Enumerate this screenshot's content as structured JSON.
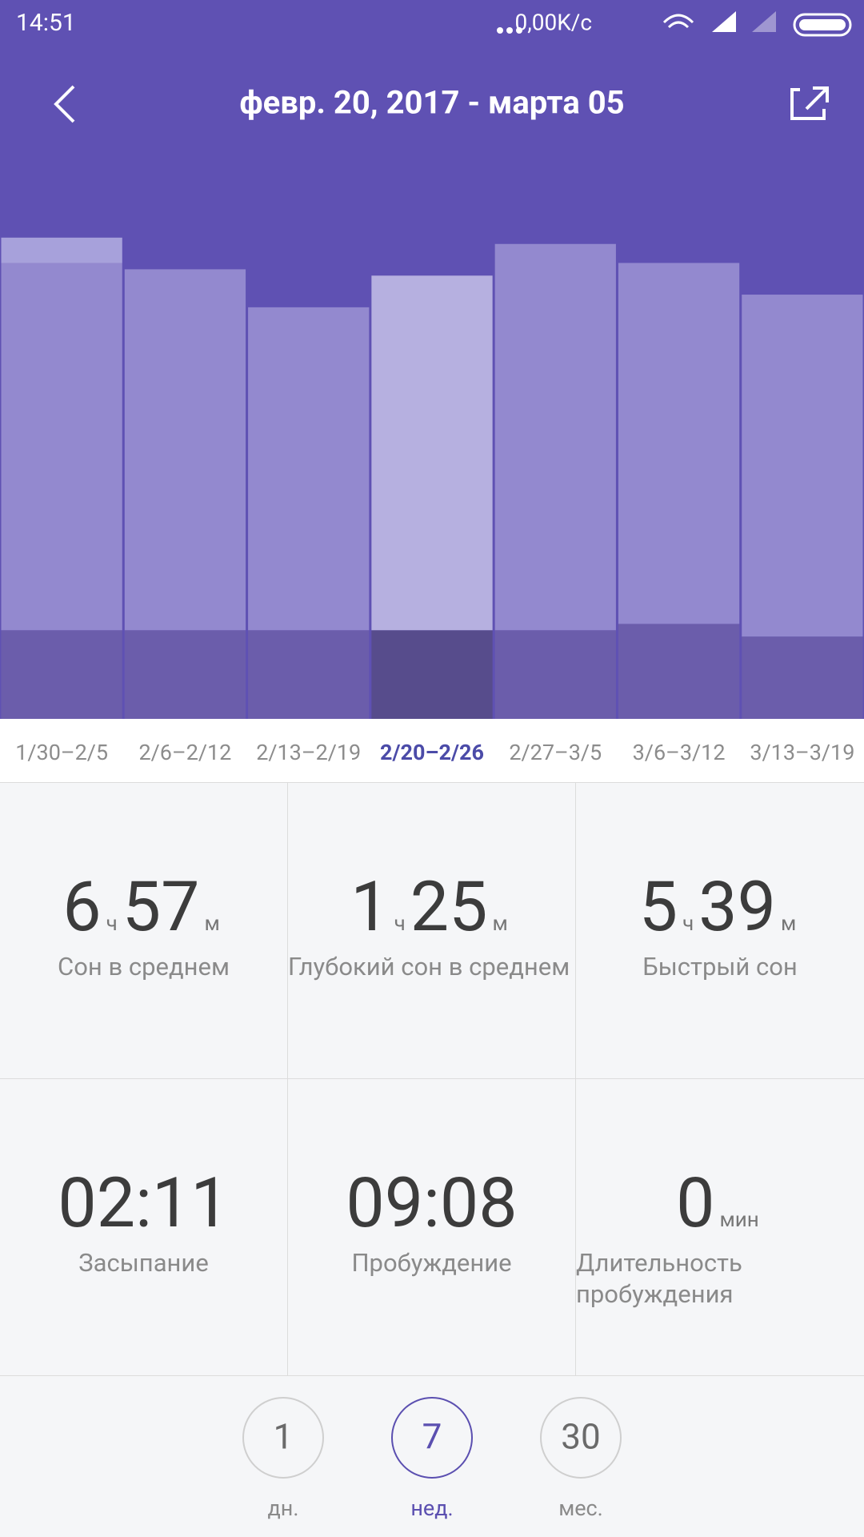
{
  "status_bar": {
    "time": "14:51",
    "network_speed": "0,00K/с"
  },
  "header": {
    "title": "февр. 20, 2017 - марта 05"
  },
  "chart_data": {
    "type": "bar",
    "stacked": true,
    "categories": [
      "1/30–2/5",
      "2/6–2/12",
      "2/13–2/19",
      "2/20–2/26",
      "2/27–3/5",
      "3/6–3/12",
      "3/13–3/19"
    ],
    "selected_index": 3,
    "series": [
      {
        "color": "#6b5dab",
        "selected_color": "#574c8c",
        "values": [
          1.4,
          1.4,
          1.4,
          1.4,
          1.4,
          1.5,
          1.3
        ]
      },
      {
        "color": "#9389cf",
        "selected_color": "#b6b0e0",
        "values": [
          5.8,
          5.7,
          5.1,
          5.6,
          6.1,
          5.7,
          5.4
        ]
      },
      {
        "color": "#a7a1db",
        "selected_color": "#c6c1ea",
        "values": [
          0.4,
          0,
          0,
          0,
          0,
          0,
          0
        ]
      }
    ],
    "ylim": [
      0,
      10
    ]
  },
  "stats": [
    {
      "hours": 6,
      "hours_unit": "ч",
      "minutes": 57,
      "minutes_unit": "м",
      "label": "Сон в среднем"
    },
    {
      "hours": 1,
      "hours_unit": "ч",
      "minutes": 25,
      "minutes_unit": "м",
      "label": "Глубокий сон в среднем"
    },
    {
      "hours": 5,
      "hours_unit": "ч",
      "minutes": 39,
      "minutes_unit": "м",
      "label": "Быстрый сон"
    },
    {
      "time": "02:11",
      "label": "Засыпание"
    },
    {
      "time": "09:08",
      "label": "Пробуждение"
    },
    {
      "minutes": 0,
      "minutes_unit": "мин",
      "label": "Длительность пробуждения"
    }
  ],
  "period_selector": {
    "selected_index": 1,
    "options": [
      {
        "value": 1,
        "label": "дн."
      },
      {
        "value": 7,
        "label": "нед."
      },
      {
        "value": 30,
        "label": "мес."
      }
    ]
  }
}
